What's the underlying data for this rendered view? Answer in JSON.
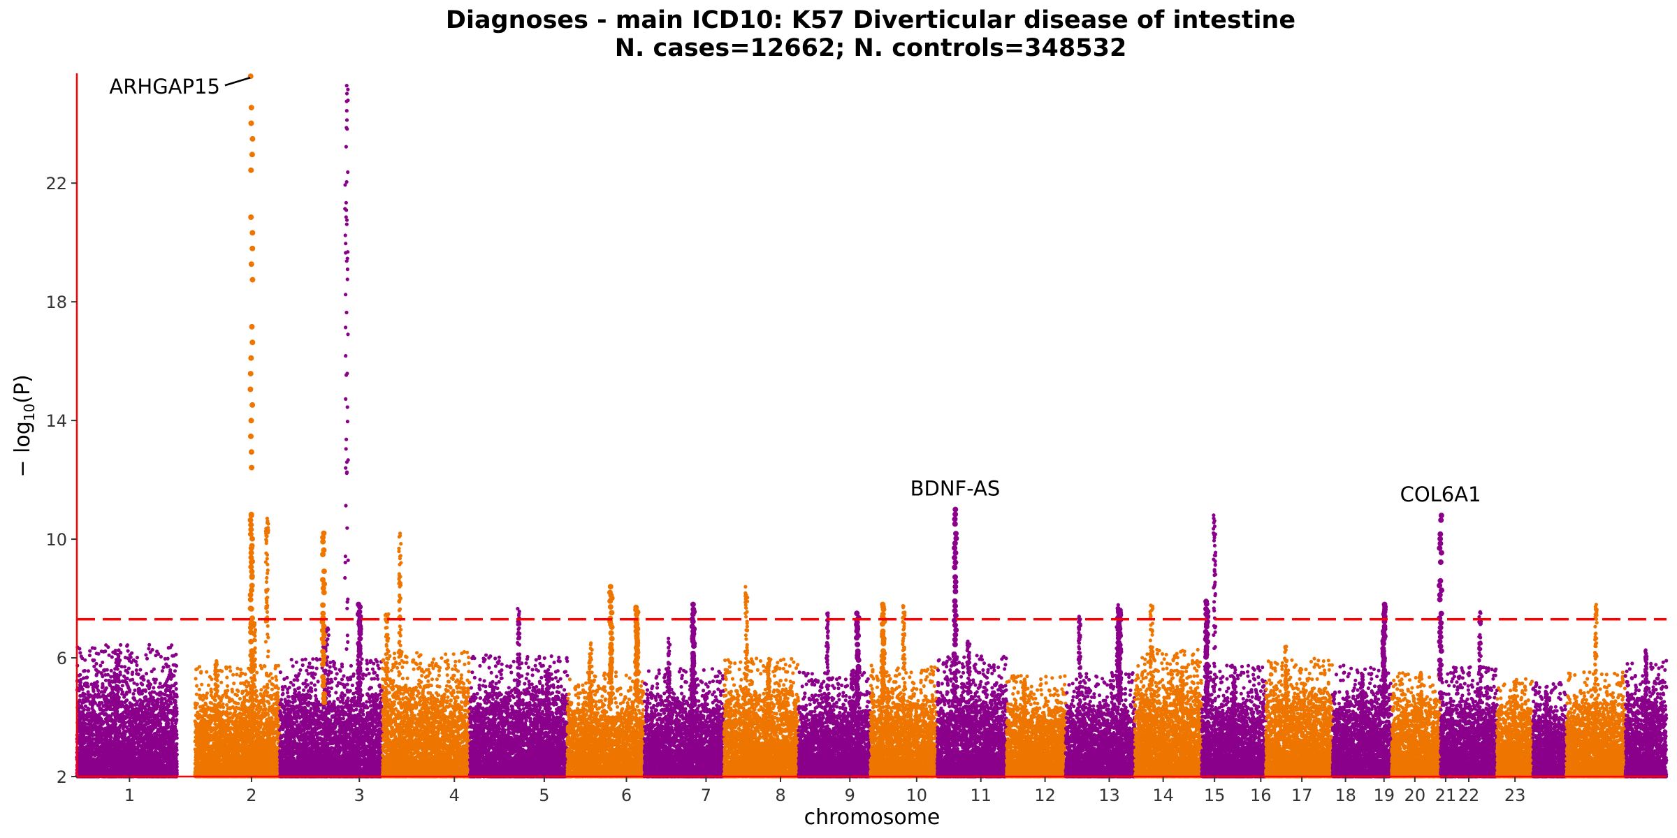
{
  "chart_data": {
    "type": "scatter",
    "title": "Diagnoses - main ICD10: K57 Diverticular disease of intestine",
    "subtitle": "N. cases=12662; N. controls=348532",
    "xlabel": "chromosome",
    "ylabel_main": "− log",
    "ylabel_sub": "10",
    "ylabel_tail": "(P)",
    "ylim": [
      2,
      25.7
    ],
    "yticks": [
      2,
      6,
      10,
      14,
      18,
      22
    ],
    "significance_threshold": 7.3,
    "grid": false,
    "legend": "none",
    "colors": {
      "odd_chromosome": "#8B008B",
      "even_chromosome": "#EE7600",
      "threshold_line": "#FF0000",
      "axis_line": "#FF0000"
    },
    "chromosomes": [
      {
        "label": "1",
        "start": 0.0,
        "end": 3.9,
        "baseline_max": 5.6,
        "peaks": [
          [
            0.4,
            0.5,
            6.3
          ]
        ]
      },
      {
        "label": "2",
        "start": 4.6,
        "end": 7.9,
        "baseline_max": 5.0,
        "peaks": [
          [
            0.25,
            0.4,
            5.9
          ],
          [
            0.7,
            0.3,
            7.2
          ],
          [
            0.85,
            0.4,
            10.8
          ]
        ]
      },
      {
        "label": "3",
        "start": 7.9,
        "end": 11.9,
        "baseline_max": 5.2,
        "peaks": [
          [
            0.45,
            0.7,
            7.0
          ],
          [
            0.65,
            0.4,
            25.6
          ]
        ]
      },
      {
        "label": "4",
        "start": 11.9,
        "end": 15.3,
        "baseline_max": 5.4,
        "peaks": [
          [
            0.05,
            0.5,
            7.5
          ],
          [
            0.2,
            0.3,
            10.2
          ]
        ]
      },
      {
        "label": "5",
        "start": 15.3,
        "end": 19.1,
        "baseline_max": 5.3,
        "peaks": [
          [
            0.5,
            0.3,
            7.8
          ],
          [
            0.8,
            0.4,
            5.6
          ]
        ]
      },
      {
        "label": "6",
        "start": 19.1,
        "end": 22.1,
        "baseline_max": 4.8,
        "peaks": [
          [
            0.3,
            0.5,
            6.5
          ]
        ]
      },
      {
        "label": "7",
        "start": 22.1,
        "end": 25.2,
        "baseline_max": 4.9,
        "peaks": [
          [
            0.3,
            0.5,
            6.7
          ],
          [
            0.6,
            0.4,
            5.8
          ]
        ]
      },
      {
        "label": "8",
        "start": 25.2,
        "end": 28.1,
        "baseline_max": 5.2,
        "peaks": [
          [
            0.3,
            0.4,
            8.4
          ],
          [
            0.6,
            0.4,
            6.0
          ]
        ]
      },
      {
        "label": "9",
        "start": 28.1,
        "end": 30.9,
        "baseline_max": 4.8,
        "peaks": [
          [
            0.4,
            0.3,
            7.7
          ],
          [
            0.75,
            0.4,
            5.6
          ]
        ]
      },
      {
        "label": "10",
        "start": 30.9,
        "end": 33.5,
        "baseline_max": 5.0,
        "peaks": [
          [
            0.5,
            0.4,
            7.8
          ]
        ]
      },
      {
        "label": "11",
        "start": 33.5,
        "end": 36.2,
        "baseline_max": 5.3,
        "peaks": [
          [
            0.45,
            0.5,
            6.6
          ]
        ]
      },
      {
        "label": "12",
        "start": 36.2,
        "end": 38.5,
        "baseline_max": 4.7,
        "peaks": [
          [
            0.3,
            0.5,
            5.3
          ]
        ]
      },
      {
        "label": "13",
        "start": 38.5,
        "end": 41.2,
        "baseline_max": 4.8,
        "peaks": [
          [
            0.2,
            0.4,
            7.4
          ],
          [
            0.75,
            0.3,
            7.8
          ]
        ]
      },
      {
        "label": "14",
        "start": 41.2,
        "end": 43.8,
        "baseline_max": 5.5,
        "peaks": [
          [
            0.25,
            0.6,
            7.8
          ],
          [
            0.7,
            0.6,
            5.6
          ]
        ]
      },
      {
        "label": "15",
        "start": 43.8,
        "end": 46.3,
        "baseline_max": 5.0,
        "peaks": [
          [
            0.2,
            0.4,
            11.0
          ],
          [
            0.5,
            0.3,
            5.5
          ]
        ]
      },
      {
        "label": "16",
        "start": 46.3,
        "end": 48.9,
        "baseline_max": 5.2,
        "peaks": [
          [
            0.3,
            0.4,
            6.4
          ]
        ]
      },
      {
        "label": "17",
        "start": 48.9,
        "end": 51.2,
        "baseline_max": 5.0,
        "peaks": [
          [
            0.5,
            0.4,
            5.4
          ]
        ]
      },
      {
        "label": "18",
        "start": 51.2,
        "end": 53.1,
        "baseline_max": 4.8,
        "peaks": [
          [
            0.6,
            0.4,
            5.5
          ]
        ]
      },
      {
        "label": "19",
        "start": 53.1,
        "end": 55.3,
        "baseline_max": 5.0,
        "peaks": [
          [
            0.7,
            0.3,
            7.6
          ]
        ]
      },
      {
        "label": "20",
        "start": 55.3,
        "end": 56.7,
        "baseline_max": 4.6,
        "peaks": [
          [
            0.5,
            0.4,
            5.2
          ]
        ]
      },
      {
        "label": "21",
        "start": 56.7,
        "end": 58.0,
        "baseline_max": 4.5,
        "peaks": [
          [
            0.4,
            0.4,
            5.0
          ]
        ]
      },
      {
        "label": "22",
        "start": 58.0,
        "end": 60.3,
        "baseline_max": 4.8,
        "peaks": [
          [
            0.5,
            0.3,
            7.8
          ]
        ]
      },
      {
        "label": "23",
        "start": 60.3,
        "end": 61.9,
        "baseline_max": 5.2,
        "peaks": [
          [
            0.5,
            0.4,
            6.3
          ]
        ]
      }
    ],
    "tick_positions": [
      {
        "label": "1",
        "x": 2.05
      },
      {
        "label": "2",
        "x": 6.8
      },
      {
        "label": "3",
        "x": 11.0
      },
      {
        "label": "4",
        "x": 14.7
      },
      {
        "label": "5",
        "x": 18.2
      },
      {
        "label": "6",
        "x": 21.4
      },
      {
        "label": "7",
        "x": 24.5
      },
      {
        "label": "8",
        "x": 27.4
      },
      {
        "label": "9",
        "x": 30.1
      },
      {
        "label": "10",
        "x": 32.7
      },
      {
        "label": "11",
        "x": 35.2
      },
      {
        "label": "12",
        "x": 37.7
      },
      {
        "label": "13",
        "x": 40.2
      },
      {
        "label": "14",
        "x": 42.3
      },
      {
        "label": "15",
        "x": 44.3
      },
      {
        "label": "16",
        "x": 46.1
      },
      {
        "label": "17",
        "x": 47.7
      },
      {
        "label": "18",
        "x": 49.4
      },
      {
        "label": "19",
        "x": 50.9
      },
      {
        "label": "20",
        "x": 52.1
      },
      {
        "label": "21",
        "x": 53.3
      },
      {
        "label": "22",
        "x": 54.2
      },
      {
        "label": "23",
        "x": 56.0
      }
    ],
    "significant_hits": [
      {
        "chromosome": "2",
        "x": 6.8,
        "y": 10.8
      },
      {
        "chromosome": "2",
        "x": 6.8,
        "y": 25.6
      },
      {
        "chromosome": "2",
        "x": 9.6,
        "y": 10.2
      },
      {
        "chromosome": "3",
        "x": 11.0,
        "y": 7.8
      },
      {
        "chromosome": "6",
        "x": 20.8,
        "y": 8.4
      },
      {
        "chromosome": "6",
        "x": 21.8,
        "y": 7.7
      },
      {
        "chromosome": "7",
        "x": 24.0,
        "y": 7.8
      },
      {
        "chromosome": "9",
        "x": 30.4,
        "y": 7.5
      },
      {
        "chromosome": "10",
        "x": 31.4,
        "y": 7.8
      },
      {
        "chromosome": "11",
        "x": 34.2,
        "y": 11.0
      },
      {
        "chromosome": "13",
        "x": 40.6,
        "y": 7.6
      },
      {
        "chromosome": "15",
        "x": 44.0,
        "y": 7.9
      },
      {
        "chromosome": "19",
        "x": 50.9,
        "y": 7.8
      },
      {
        "chromosome": "21",
        "x": 53.1,
        "y": 10.8
      }
    ],
    "annotations": [
      {
        "label": "ARHGAP15",
        "x": 6.8,
        "y": 25.6
      },
      {
        "label": "BDNF-AS",
        "x": 34.2,
        "y": 11.0
      },
      {
        "label": "COL6A1",
        "x": 53.1,
        "y": 10.8
      }
    ]
  }
}
